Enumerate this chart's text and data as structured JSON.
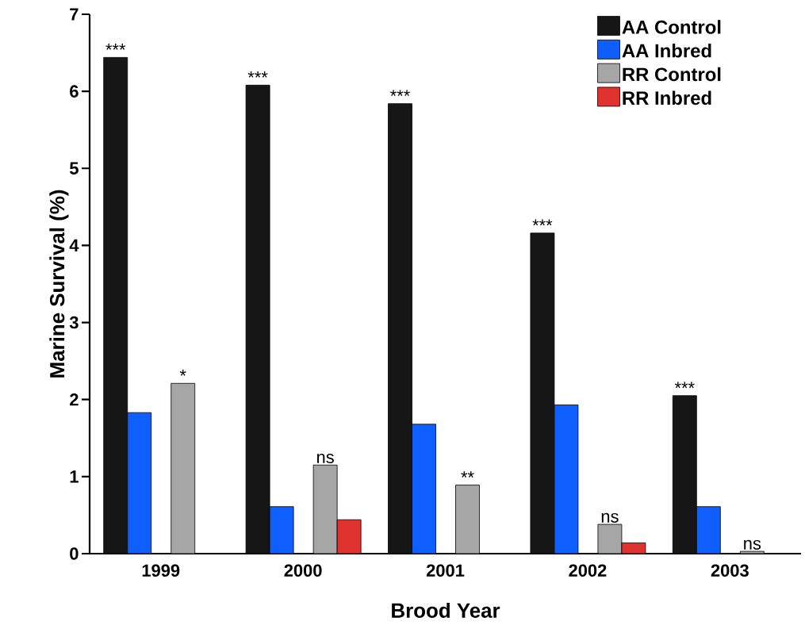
{
  "chart_data": {
    "type": "bar",
    "xlabel": "Brood Year",
    "ylabel": "Marine Survival (%)",
    "categories": [
      "1999",
      "2000",
      "2001",
      "2002",
      "2003"
    ],
    "series": [
      {
        "name": "AA Control",
        "color": "#161616",
        "values": [
          6.44,
          6.08,
          5.84,
          4.16,
          2.05
        ]
      },
      {
        "name": "AA Inbred",
        "color": "#0f5fff",
        "values": [
          1.83,
          0.61,
          1.68,
          1.93,
          0.61
        ]
      },
      {
        "name": "RR Control",
        "color": "#a6a6a6",
        "values": [
          2.21,
          1.15,
          0.89,
          0.38,
          0.03
        ]
      },
      {
        "name": "RR Inbred",
        "color": "#e0322e",
        "values": [
          null,
          0.44,
          null,
          0.14,
          null
        ]
      }
    ],
    "ylim": [
      0,
      7
    ],
    "yticks": [
      0,
      1,
      2,
      3,
      4,
      5,
      6,
      7
    ],
    "legend": "top right",
    "annotations": [
      "***",
      "*",
      "***",
      "ns",
      "***",
      "**",
      "***",
      "ns",
      "***",
      "ns"
    ]
  }
}
